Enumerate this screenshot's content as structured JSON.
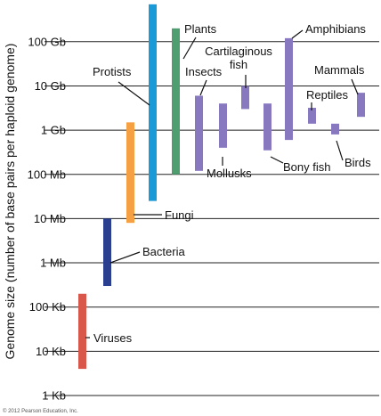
{
  "chart_data": {
    "type": "range-bar",
    "scale": "log",
    "title": "",
    "ylabel": "Genome size (number of base pairs per haploid genome)",
    "ylim": [
      "1 Kb",
      "1 Tb"
    ],
    "tick_labels": [
      "1 Kb",
      "10 Kb",
      "100 Kb",
      "1 Mb",
      "10 Mb",
      "100 Mb",
      "1 Gb",
      "10 Gb",
      "100 Gb"
    ],
    "grid": true,
    "colors": {
      "viruses": "#d9574a",
      "bacteria": "#2a3f8f",
      "fungi": "#f5a043",
      "protists": "#1a9ad6",
      "plants": "#4f9e6f",
      "animals": "#8878bf"
    },
    "groups": [
      {
        "name": "Viruses",
        "min": "4 Kb",
        "max": "200 Kb",
        "color_key": "viruses"
      },
      {
        "name": "Bacteria",
        "min": "300 Kb",
        "max": "10 Mb",
        "color_key": "bacteria"
      },
      {
        "name": "Fungi",
        "min": "8 Mb",
        "max": "1.5 Gb",
        "color_key": "fungi"
      },
      {
        "name": "Protists",
        "min": "25 Mb",
        "max": "700 Gb",
        "color_key": "protists"
      },
      {
        "name": "Plants",
        "min": "100 Mb",
        "max": "200 Gb",
        "color_key": "plants"
      },
      {
        "name": "Insects",
        "min": "120 Mb",
        "max": "6 Gb",
        "color_key": "animals"
      },
      {
        "name": "Mollusks",
        "min": "400 Mb",
        "max": "4 Gb",
        "color_key": "animals"
      },
      {
        "name": "Cartilaginous fish",
        "min": "3 Gb",
        "max": "10 Gb",
        "color_key": "animals"
      },
      {
        "name": "Bony fish",
        "min": "350 Mb",
        "max": "4 Gb",
        "color_key": "animals"
      },
      {
        "name": "Amphibians",
        "min": "600 Mb",
        "max": "120 Gb",
        "color_key": "animals"
      },
      {
        "name": "Reptiles",
        "min": "1.4 Gb",
        "max": "3.2 Gb",
        "color_key": "animals"
      },
      {
        "name": "Birds",
        "min": "800 Mb",
        "max": "1.4 Gb",
        "color_key": "animals"
      },
      {
        "name": "Mammals",
        "min": "2 Gb",
        "max": "7 Gb",
        "color_key": "animals"
      }
    ]
  },
  "copyright": "© 2012 Pearson Education, Inc."
}
